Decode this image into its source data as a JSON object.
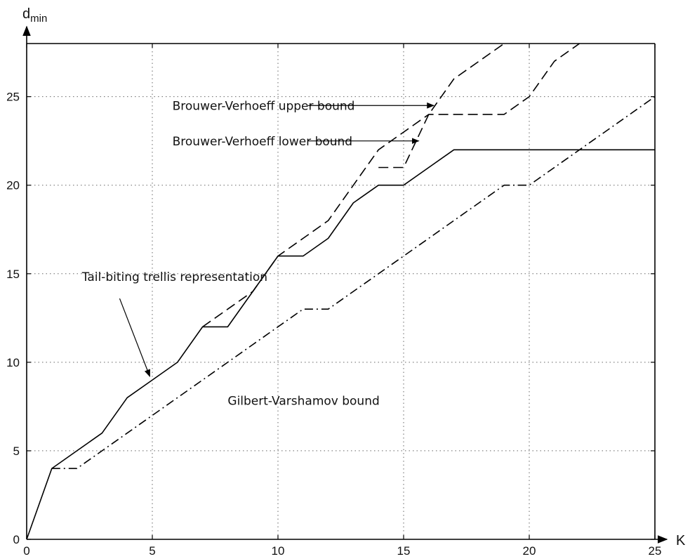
{
  "chart_data": {
    "type": "line",
    "xlabel": "K",
    "ylabel_main": "d",
    "ylabel_sub": "min",
    "xlim": [
      0,
      25
    ],
    "ylim": [
      0,
      28
    ],
    "xticks": [
      0,
      5,
      10,
      15,
      20,
      25
    ],
    "yticks": [
      0,
      5,
      10,
      15,
      20,
      25
    ],
    "grid": true,
    "series": [
      {
        "name": "Tail-biting trellis representation",
        "style": "solid",
        "x": [
          0,
          1,
          2,
          3,
          4,
          5,
          6,
          7,
          8,
          9,
          10,
          11,
          12,
          13,
          14,
          15,
          16,
          17,
          18,
          19,
          20,
          21,
          22,
          23,
          24,
          25
        ],
        "y": [
          0,
          4,
          5,
          6,
          8,
          9,
          10,
          12,
          12,
          14,
          16,
          16,
          17,
          19,
          20,
          20,
          21,
          22,
          22,
          22,
          22,
          22,
          22,
          22,
          22,
          22
        ]
      },
      {
        "name": "Brouwer-Verhoeff upper bound",
        "style": "dashed",
        "x": [
          7,
          8,
          9,
          10,
          11,
          12,
          13,
          14,
          15,
          16,
          17,
          18,
          19,
          20,
          21,
          22
        ],
        "y": [
          12,
          13,
          14,
          16,
          17,
          18,
          20,
          22,
          23,
          24,
          24,
          24,
          24,
          25,
          27,
          28
        ]
      },
      {
        "name": "Brouwer-Verhoeff lower bound",
        "style": "dashed",
        "x": [
          14,
          15,
          16,
          17,
          18,
          19
        ],
        "y": [
          21,
          21,
          24,
          26,
          27,
          28
        ]
      },
      {
        "name": "Gilbert-Varshamov bound",
        "style": "dashdot",
        "x": [
          1,
          2,
          3,
          4,
          5,
          6,
          7,
          8,
          9,
          10,
          11,
          12,
          13,
          14,
          15,
          16,
          17,
          18,
          19,
          20,
          21,
          22,
          23,
          24,
          25
        ],
        "y": [
          4,
          4,
          5,
          6,
          7,
          8,
          9,
          10,
          11,
          12,
          13,
          13,
          14,
          15,
          16,
          17,
          18,
          19,
          20,
          20,
          21,
          22,
          23,
          24,
          25
        ]
      }
    ],
    "annotations": [
      {
        "text": "Brouwer-Verhoeff upper bound",
        "x": 5.8,
        "y": 24.25,
        "arrow_from": [
          11.2,
          24.5
        ],
        "arrow_to": [
          16.2,
          24.5
        ]
      },
      {
        "text": "Brouwer-Verhoeff lower bound",
        "x": 5.8,
        "y": 22.25,
        "arrow_from": [
          11.2,
          22.5
        ],
        "arrow_to": [
          15.6,
          22.5
        ]
      },
      {
        "text": "Tail-biting trellis representation",
        "x": 2.2,
        "y": 14.6,
        "arrow_from": [
          3.7,
          13.6
        ],
        "arrow_to": [
          4.9,
          9.2
        ]
      },
      {
        "text": "Gilbert-Varshamov bound",
        "x": 8.0,
        "y": 7.6
      }
    ]
  }
}
